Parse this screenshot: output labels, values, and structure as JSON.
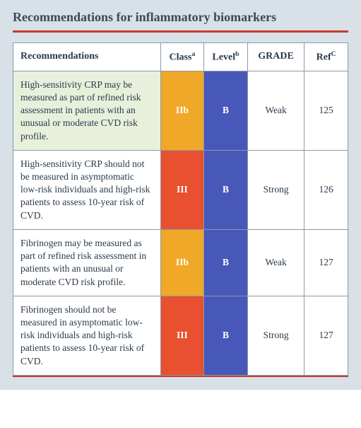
{
  "title": "Recommendations for inflammatory biomarkers",
  "columns": {
    "rec": "Recommendations",
    "class": "Class",
    "class_sup": "a",
    "level": "Level",
    "level_sup": "b",
    "grade": "GRADE",
    "ref": "Ref",
    "ref_sup": "C"
  },
  "colors": {
    "container_bg": "#d8e0e8",
    "redline": "#c83c2c",
    "border": "#8a9aaa",
    "text": "#2a3a4a",
    "class_IIb_bg": "#f0a828",
    "class_III_bg": "#e85030",
    "level_B_bg": "#4858b8",
    "highlight_bg": "#e8f0dc"
  },
  "rows": [
    {
      "rec": "High-sensitivity CRP may be measured as part of refined risk assessment in patients with an unusual or moderate CVD risk profile.",
      "class": "IIb",
      "class_bg": "#f0a828",
      "level": "B",
      "level_bg": "#4858b8",
      "grade": "Weak",
      "ref": "125",
      "highlight": true
    },
    {
      "rec": "High-sensitivity CRP should not be measured in asymptomatic low-risk individuals and high-risk patients to assess 10-year risk of CVD.",
      "class": "III",
      "class_bg": "#e85030",
      "level": "B",
      "level_bg": "#4858b8",
      "grade": "Strong",
      "ref": "126",
      "highlight": false
    },
    {
      "rec": "Fibrinogen may be measured as part of refined risk assessment in patients with an unusual or moderate CVD risk profile.",
      "class": "IIb",
      "class_bg": "#f0a828",
      "level": "B",
      "level_bg": "#4858b8",
      "grade": "Weak",
      "ref": "127",
      "highlight": false
    },
    {
      "rec": "Fibrinogen should not be measured in asymptomatic low-risk individuals and high-risk patients to assess 10-year risk of CVD.",
      "class": "III",
      "class_bg": "#e85030",
      "level": "B",
      "level_bg": "#4858b8",
      "grade": "Strong",
      "ref": "127",
      "highlight": false
    }
  ]
}
